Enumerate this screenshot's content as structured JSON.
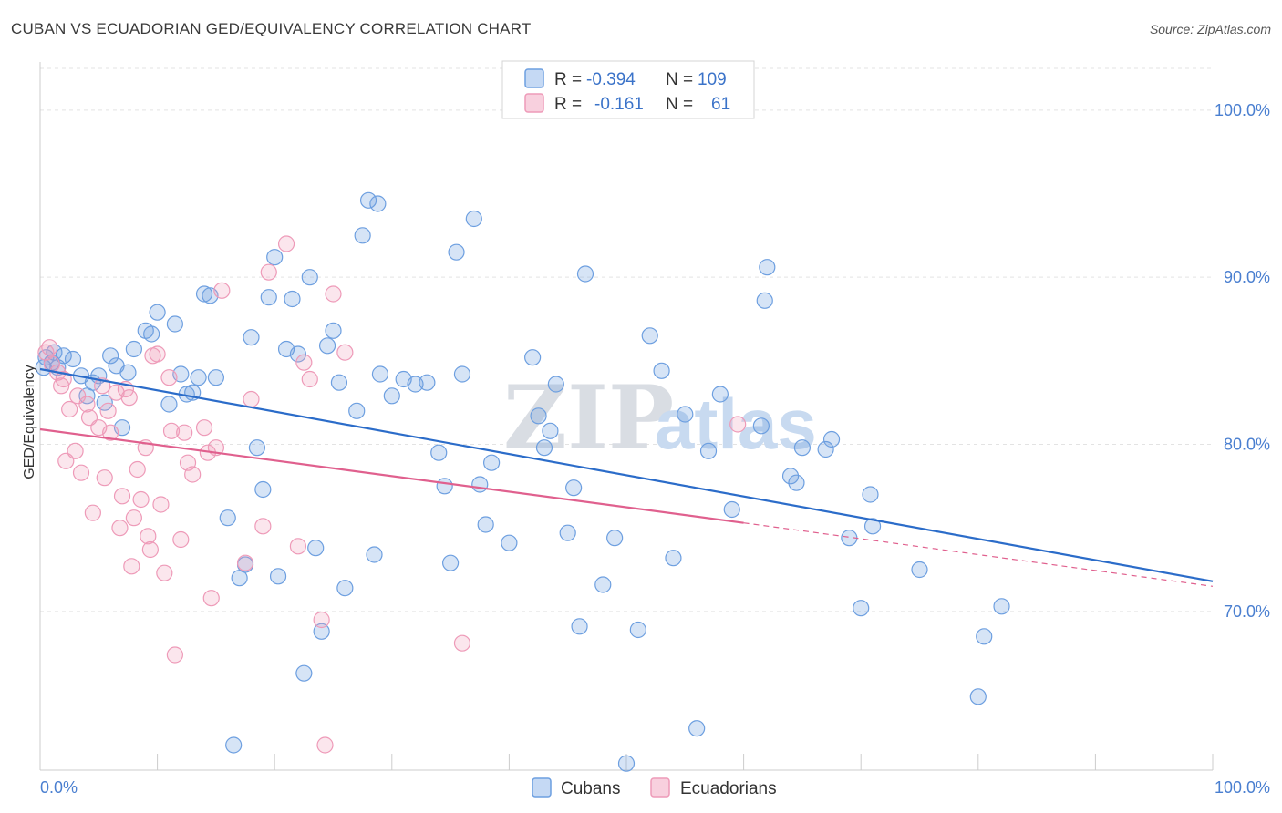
{
  "title": "CUBAN VS ECUADORIAN GED/EQUIVALENCY CORRELATION CHART",
  "source": "Source: ZipAtlas.com",
  "colors": {
    "cubans": "#6d9fe0",
    "cubans_line": "#2b6cc9",
    "ecuadorians": "#ee9ab8",
    "ecuadorians_line": "#e0608e",
    "tick": "#4a7fd0"
  },
  "legend": {
    "cubans": {
      "r_label": "R =",
      "r_value": "-0.394",
      "n_label": "N =",
      "n_value": "109"
    },
    "ecuadorians": {
      "r_label": "R =",
      "r_value": "-0.161",
      "n_label": "N =",
      "n_value": "61"
    }
  },
  "chart_data": {
    "type": "scatter",
    "title": "CUBAN VS ECUADORIAN GED/EQUIVALENCY CORRELATION CHART",
    "xlabel": "",
    "ylabel": "GED/Equivalency",
    "xlim": [
      0,
      100
    ],
    "ylim": [
      60.5,
      102.5
    ],
    "x_tick_labels": [
      "0.0%",
      "100.0%"
    ],
    "y_ticks": [
      70,
      80,
      90,
      100
    ],
    "y_tick_labels": [
      "70.0%",
      "80.0%",
      "90.0%",
      "100.0%"
    ],
    "grid": true,
    "legend_position": "top-center",
    "series": [
      {
        "name": "Cubans",
        "points": [
          [
            0.5,
            85.2
          ],
          [
            1,
            84.9
          ],
          [
            1.5,
            84.6
          ],
          [
            2,
            85.3
          ],
          [
            2.8,
            85.1
          ],
          [
            3.5,
            84.1
          ],
          [
            0.3,
            84.6
          ],
          [
            1.2,
            85.5
          ],
          [
            4,
            82.9
          ],
          [
            4.5,
            83.7
          ],
          [
            5,
            84.1
          ],
          [
            5.5,
            82.5
          ],
          [
            6,
            85.3
          ],
          [
            6.5,
            84.7
          ],
          [
            7,
            81
          ],
          [
            8,
            85.7
          ],
          [
            7.5,
            84.3
          ],
          [
            9,
            86.8
          ],
          [
            9.5,
            86.6
          ],
          [
            10,
            87.9
          ],
          [
            11,
            82.4
          ],
          [
            11.5,
            87.2
          ],
          [
            12,
            84.2
          ],
          [
            12.5,
            83
          ],
          [
            13,
            83.1
          ],
          [
            13.5,
            84
          ],
          [
            14,
            89
          ],
          [
            15,
            84
          ],
          [
            16,
            75.6
          ],
          [
            17,
            72
          ],
          [
            17.5,
            72.8
          ],
          [
            18,
            86.4
          ],
          [
            18.5,
            79.8
          ],
          [
            19,
            77.3
          ],
          [
            19.5,
            88.8
          ],
          [
            20,
            91.2
          ],
          [
            20.3,
            72.1
          ],
          [
            21,
            85.7
          ],
          [
            21.5,
            88.7
          ],
          [
            22,
            85.4
          ],
          [
            22.5,
            66.3
          ],
          [
            23,
            90
          ],
          [
            23.5,
            73.8
          ],
          [
            24,
            68.8
          ],
          [
            24.5,
            85.9
          ],
          [
            25,
            86.8
          ],
          [
            25.5,
            83.7
          ],
          [
            26,
            71.4
          ],
          [
            27,
            82
          ],
          [
            27.5,
            92.5
          ],
          [
            28,
            94.6
          ],
          [
            28.5,
            73.4
          ],
          [
            28.8,
            94.4
          ],
          [
            29,
            84.2
          ],
          [
            30,
            82.9
          ],
          [
            31,
            83.9
          ],
          [
            32,
            83.6
          ],
          [
            33,
            83.7
          ],
          [
            34,
            79.5
          ],
          [
            34.5,
            77.5
          ],
          [
            35,
            72.9
          ],
          [
            35.5,
            91.5
          ],
          [
            36,
            84.2
          ],
          [
            37,
            93.5
          ],
          [
            37.5,
            77.6
          ],
          [
            38,
            75.2
          ],
          [
            38.5,
            78.9
          ],
          [
            40,
            74.1
          ],
          [
            42,
            85.2
          ],
          [
            42.5,
            81.7
          ],
          [
            43,
            79.8
          ],
          [
            43.5,
            80.8
          ],
          [
            44,
            83.6
          ],
          [
            45,
            74.7
          ],
          [
            45.5,
            77.4
          ],
          [
            46,
            69.1
          ],
          [
            46.5,
            90.2
          ],
          [
            48,
            71.6
          ],
          [
            49,
            74.4
          ],
          [
            51,
            68.9
          ],
          [
            52,
            86.5
          ],
          [
            53,
            84.4
          ],
          [
            54,
            73.2
          ],
          [
            55,
            81.8
          ],
          [
            56,
            63
          ],
          [
            57,
            79.6
          ],
          [
            58,
            83
          ],
          [
            59,
            76.1
          ],
          [
            61.5,
            81.1
          ],
          [
            62,
            90.6
          ],
          [
            61.8,
            88.6
          ],
          [
            64,
            78.1
          ],
          [
            64.5,
            77.7
          ],
          [
            65,
            79.8
          ],
          [
            67,
            79.7
          ],
          [
            67.5,
            80.3
          ],
          [
            69,
            74.4
          ],
          [
            70,
            70.2
          ],
          [
            70.8,
            77
          ],
          [
            71,
            75.1
          ],
          [
            75,
            72.5
          ],
          [
            80.5,
            68.5
          ],
          [
            80,
            64.9
          ],
          [
            82,
            70.3
          ],
          [
            50,
            60.9
          ],
          [
            16.5,
            62
          ],
          [
            14.5,
            88.9
          ]
        ]
      },
      {
        "name": "Ecuadorians",
        "points": [
          [
            0.5,
            85.5
          ],
          [
            1,
            84.8
          ],
          [
            1.5,
            84.3
          ],
          [
            2,
            83.9
          ],
          [
            2.5,
            82.1
          ],
          [
            3,
            79.6
          ],
          [
            3.5,
            78.3
          ],
          [
            4,
            82.4
          ],
          [
            4.2,
            81.6
          ],
          [
            4.5,
            75.9
          ],
          [
            5,
            81
          ],
          [
            5.3,
            83.5
          ],
          [
            5.5,
            78
          ],
          [
            6,
            80.7
          ],
          [
            6.5,
            83.1
          ],
          [
            7,
            76.9
          ],
          [
            7.3,
            83.3
          ],
          [
            7.6,
            82.8
          ],
          [
            7.8,
            72.7
          ],
          [
            8,
            75.6
          ],
          [
            8.3,
            78.5
          ],
          [
            8.6,
            76.7
          ],
          [
            9,
            79.8
          ],
          [
            9.2,
            74.5
          ],
          [
            9.4,
            73.7
          ],
          [
            9.6,
            85.3
          ],
          [
            10,
            85.4
          ],
          [
            10.3,
            76.4
          ],
          [
            10.6,
            72.3
          ],
          [
            11,
            84
          ],
          [
            11.2,
            80.8
          ],
          [
            11.5,
            67.4
          ],
          [
            12,
            74.3
          ],
          [
            12.3,
            80.7
          ],
          [
            12.6,
            78.9
          ],
          [
            13,
            78.2
          ],
          [
            14,
            81
          ],
          [
            14.3,
            79.5
          ],
          [
            14.6,
            70.8
          ],
          [
            15,
            79.8
          ],
          [
            15.5,
            89.2
          ],
          [
            17.5,
            72.9
          ],
          [
            18,
            82.7
          ],
          [
            19,
            75.1
          ],
          [
            19.5,
            90.3
          ],
          [
            21,
            92
          ],
          [
            22,
            73.9
          ],
          [
            22.5,
            84.9
          ],
          [
            23,
            83.9
          ],
          [
            24,
            69.5
          ],
          [
            24.3,
            62
          ],
          [
            25,
            89
          ],
          [
            26,
            85.5
          ],
          [
            36,
            68.1
          ],
          [
            59.5,
            81.2
          ],
          [
            3.2,
            82.9
          ],
          [
            2.2,
            79
          ],
          [
            6.8,
            75
          ],
          [
            1.8,
            83.5
          ],
          [
            0.8,
            85.8
          ],
          [
            5.8,
            82
          ]
        ]
      }
    ],
    "trendlines": [
      {
        "name": "Cubans",
        "from": [
          0,
          84.5
        ],
        "to": [
          100,
          71.8
        ]
      },
      {
        "name": "Ecuadorians",
        "from": [
          0,
          80.9
        ],
        "to": [
          60,
          75.3
        ],
        "dashed_to": [
          100,
          71.5
        ]
      }
    ],
    "bottom_legend": [
      "Cubans",
      "Ecuadorians"
    ]
  }
}
